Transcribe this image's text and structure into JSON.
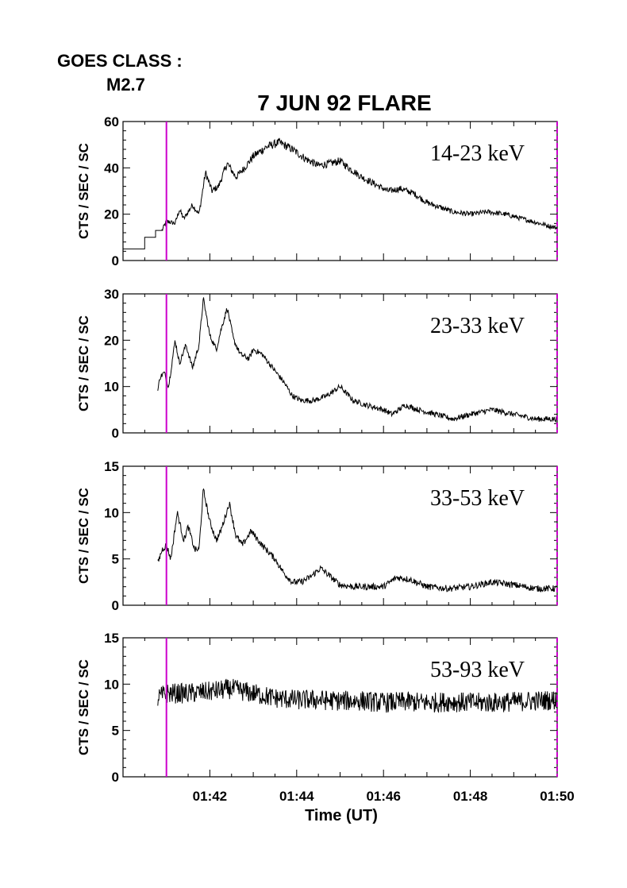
{
  "header": {
    "goes_label": "GOES CLASS :",
    "goes_value": "M2.7",
    "title": "7 JUN 92 FLARE"
  },
  "colors": {
    "trace": "#000000",
    "marker": "#cc00cc",
    "axes": "#000000"
  },
  "chart_data": {
    "type": "line",
    "title": "7 JUN 92 FLARE",
    "xlabel": "Time (UT)",
    "x_tick_labels": [
      "01:42",
      "01:44",
      "01:46",
      "01:48",
      "01:50"
    ],
    "x_ticks_min": [
      42,
      44,
      46,
      48,
      50
    ],
    "xlim_min": [
      40.0,
      50.0
    ],
    "marker_time_min": 41.0,
    "grid": false,
    "legend": "none",
    "panels": [
      {
        "band": "14-23 keV",
        "ylabel": "CTS / SEC / SC",
        "ylim": [
          0,
          60
        ],
        "y_ticks": [
          0,
          20,
          40,
          60
        ],
        "start_min": 40.0,
        "series": [
          {
            "values": [
              [
                40.0,
                5
              ],
              [
                40.5,
                5
              ],
              [
                40.5,
                10
              ],
              [
                40.75,
                10
              ],
              [
                40.75,
                13
              ],
              [
                40.9,
                13
              ],
              [
                41.0,
                17
              ],
              [
                41.2,
                16
              ],
              [
                41.3,
                22
              ],
              [
                41.4,
                18
              ],
              [
                41.6,
                24
              ],
              [
                41.75,
                20
              ],
              [
                41.9,
                38
              ],
              [
                42.05,
                30
              ],
              [
                42.2,
                32
              ],
              [
                42.4,
                42
              ],
              [
                42.6,
                36
              ],
              [
                42.8,
                40
              ],
              [
                43.0,
                45
              ],
              [
                43.3,
                49
              ],
              [
                43.6,
                51
              ],
              [
                43.9,
                48
              ],
              [
                44.2,
                44
              ],
              [
                44.5,
                41
              ],
              [
                44.8,
                42
              ],
              [
                45.0,
                43
              ],
              [
                45.2,
                40
              ],
              [
                45.5,
                36
              ],
              [
                45.8,
                33
              ],
              [
                46.1,
                30
              ],
              [
                46.4,
                31
              ],
              [
                46.7,
                29
              ],
              [
                47.0,
                25
              ],
              [
                47.3,
                23
              ],
              [
                47.6,
                21
              ],
              [
                48.0,
                20
              ],
              [
                48.4,
                21
              ],
              [
                48.8,
                20
              ],
              [
                49.2,
                18
              ],
              [
                49.6,
                16
              ],
              [
                50.0,
                14
              ]
            ]
          }
        ]
      },
      {
        "band": "23-33 keV",
        "ylabel": "CTS / SEC / SC",
        "ylim": [
          0,
          30
        ],
        "y_ticks": [
          0,
          10,
          20,
          30
        ],
        "start_min": 40.8,
        "series": [
          {
            "values": [
              [
                40.8,
                9
              ],
              [
                40.85,
                12
              ],
              [
                40.95,
                13
              ],
              [
                41.05,
                10
              ],
              [
                41.2,
                20
              ],
              [
                41.3,
                15
              ],
              [
                41.45,
                19
              ],
              [
                41.6,
                14
              ],
              [
                41.75,
                19
              ],
              [
                41.85,
                29
              ],
              [
                42.0,
                21
              ],
              [
                42.15,
                18
              ],
              [
                42.25,
                22
              ],
              [
                42.4,
                27
              ],
              [
                42.55,
                20
              ],
              [
                42.7,
                17
              ],
              [
                42.9,
                16
              ],
              [
                43.0,
                18
              ],
              [
                43.2,
                17
              ],
              [
                43.45,
                14
              ],
              [
                43.7,
                11
              ],
              [
                43.9,
                8
              ],
              [
                44.1,
                7
              ],
              [
                44.4,
                7
              ],
              [
                44.7,
                8
              ],
              [
                45.0,
                10
              ],
              [
                45.3,
                7
              ],
              [
                45.6,
                6
              ],
              [
                46.0,
                5
              ],
              [
                46.2,
                4
              ],
              [
                46.5,
                6
              ],
              [
                46.8,
                5
              ],
              [
                47.2,
                4
              ],
              [
                47.6,
                3
              ],
              [
                48.0,
                4
              ],
              [
                48.5,
                5
              ],
              [
                49.0,
                4
              ],
              [
                49.5,
                3
              ],
              [
                50.0,
                3
              ]
            ]
          }
        ]
      },
      {
        "band": "33-53 keV",
        "ylabel": "CTS / SEC / SC",
        "ylim": [
          0,
          15
        ],
        "y_ticks": [
          0,
          5,
          10,
          15
        ],
        "start_min": 40.8,
        "series": [
          {
            "values": [
              [
                40.8,
                4.5
              ],
              [
                40.9,
                6
              ],
              [
                41.0,
                6.5
              ],
              [
                41.1,
                5
              ],
              [
                41.25,
                10
              ],
              [
                41.4,
                7
              ],
              [
                41.5,
                8.5
              ],
              [
                41.65,
                6
              ],
              [
                41.75,
                6
              ],
              [
                41.85,
                12.5
              ],
              [
                42.0,
                9
              ],
              [
                42.15,
                7
              ],
              [
                42.25,
                8
              ],
              [
                42.45,
                11
              ],
              [
                42.6,
                7.5
              ],
              [
                42.75,
                6.5
              ],
              [
                42.95,
                8
              ],
              [
                43.2,
                6.5
              ],
              [
                43.5,
                5
              ],
              [
                43.7,
                3.5
              ],
              [
                43.9,
                2.5
              ],
              [
                44.1,
                2.5
              ],
              [
                44.3,
                3
              ],
              [
                44.55,
                4
              ],
              [
                44.8,
                3
              ],
              [
                45.0,
                2.2
              ],
              [
                45.3,
                2
              ],
              [
                45.6,
                2
              ],
              [
                46.0,
                2
              ],
              [
                46.3,
                3
              ],
              [
                46.6,
                2.8
              ],
              [
                47.0,
                2
              ],
              [
                47.5,
                1.8
              ],
              [
                48.0,
                2
              ],
              [
                48.5,
                2.5
              ],
              [
                49.0,
                2.2
              ],
              [
                49.5,
                1.8
              ],
              [
                50.0,
                1.8
              ]
            ]
          }
        ]
      },
      {
        "band": "53-93 keV",
        "ylabel": "CTS / SEC / SC",
        "ylim": [
          0,
          15
        ],
        "y_ticks": [
          0,
          5,
          10,
          15
        ],
        "start_min": 40.8,
        "series": [
          {
            "values": [
              [
                40.8,
                8.5
              ],
              [
                41.0,
                9
              ],
              [
                41.5,
                9
              ],
              [
                42.0,
                9.2
              ],
              [
                42.5,
                9.5
              ],
              [
                43.0,
                9
              ],
              [
                43.5,
                8.5
              ],
              [
                44.0,
                8.3
              ],
              [
                44.5,
                8.3
              ],
              [
                45.0,
                8.2
              ],
              [
                45.5,
                8.2
              ],
              [
                46.0,
                8
              ],
              [
                46.5,
                8.1
              ],
              [
                47.0,
                8
              ],
              [
                47.5,
                8.1
              ],
              [
                48.0,
                8
              ],
              [
                48.5,
                8
              ],
              [
                49.0,
                8.1
              ],
              [
                49.5,
                8.2
              ],
              [
                50.0,
                8.3
              ]
            ]
          }
        ]
      }
    ]
  }
}
